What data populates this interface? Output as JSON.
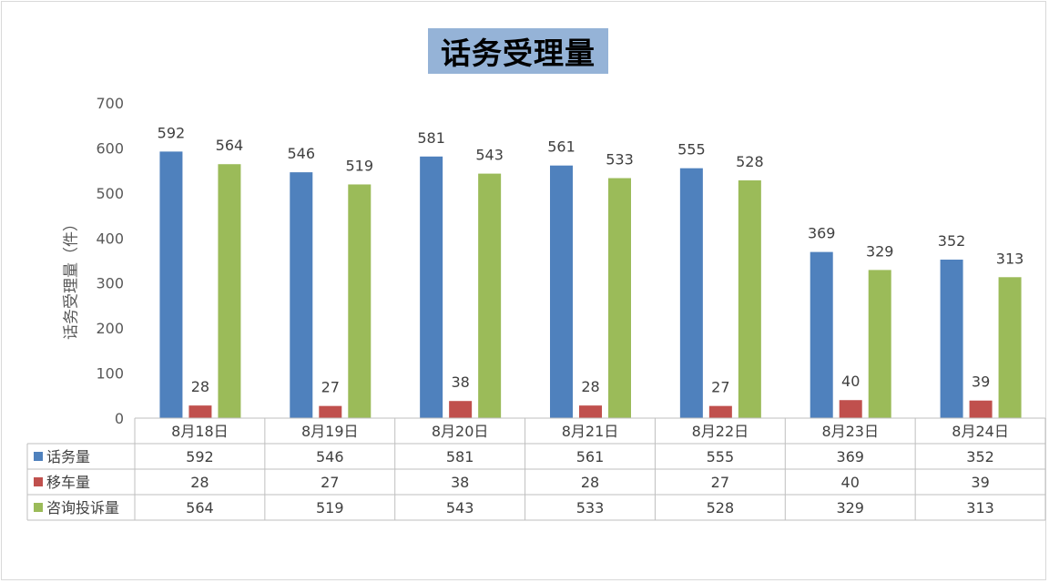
{
  "chart_data": {
    "type": "bar",
    "title": "话务受理量",
    "ylabel": "话务受理量（件）",
    "ylim": [
      0,
      700
    ],
    "yticks": [
      0,
      100,
      200,
      300,
      400,
      500,
      600,
      700
    ],
    "grid": false,
    "legend": "data-table",
    "categories": [
      "8月18日",
      "8月19日",
      "8月20日",
      "8月21日",
      "8月22日",
      "8月23日",
      "8月24日"
    ],
    "series": [
      {
        "name": "话务量",
        "color": "#4f81bd",
        "values": [
          592,
          546,
          581,
          561,
          555,
          369,
          352
        ]
      },
      {
        "name": "移车量",
        "color": "#c0504d",
        "values": [
          28,
          27,
          38,
          28,
          27,
          40,
          39
        ]
      },
      {
        "name": "咨询投诉量",
        "color": "#9bbb59",
        "values": [
          564,
          519,
          543,
          533,
          528,
          329,
          313
        ]
      }
    ]
  }
}
